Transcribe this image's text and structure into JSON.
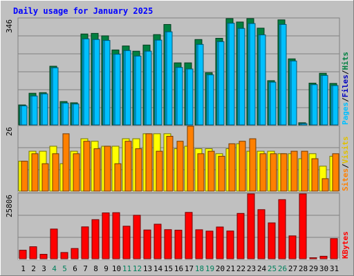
{
  "title": "Daily usage for January 2025",
  "colors": {
    "background": "#c0c0c0",
    "title": "#0000ff",
    "hits": "#008040",
    "files": "#00c0ff",
    "pages": "#00c0ff",
    "visits": "#ffff00",
    "sites": "#ff8000",
    "kbytes": "#ff0000",
    "weekend": "#00805c",
    "weekday": "#000000"
  },
  "legend": {
    "pages": "Pages",
    "files": "Files",
    "hits": "Hits",
    "sites": "Sites",
    "visits": "Visits",
    "kbytes": "KBytes",
    "sep": "/"
  },
  "chart_data": {
    "type": "bar",
    "title": "Daily usage for January 2025",
    "categories": [
      "1",
      "2",
      "3",
      "4",
      "5",
      "6",
      "7",
      "8",
      "9",
      "10",
      "11",
      "12",
      "13",
      "14",
      "15",
      "16",
      "17",
      "18",
      "19",
      "20",
      "21",
      "22",
      "23",
      "24",
      "25",
      "26",
      "27",
      "28",
      "29",
      "30",
      "31"
    ],
    "weekend_days": [
      4,
      5,
      11,
      12,
      18,
      19,
      25,
      26
    ],
    "panels": [
      {
        "name": "requests",
        "ymax": 346,
        "ymax_label": "346",
        "series": [
          {
            "name": "Hits",
            "values": [
              65,
              103,
              105,
              191,
              76,
              72,
              296,
              298,
              290,
              244,
              257,
              240,
              260,
              294,
              327,
              202,
              202,
              278,
              170,
              282,
              346,
              335,
              346,
              315,
              144,
              342,
              215,
              7,
              136,
              168,
              135
            ]
          },
          {
            "name": "Files",
            "values": [
              62,
              94,
              101,
              186,
              71,
              68,
              280,
              278,
              275,
              230,
              242,
              224,
              240,
              276,
              303,
              187,
              182,
              262,
              163,
              271,
              331,
              314,
              330,
              293,
              139,
              327,
              208,
              4,
              131,
              161,
              128
            ]
          },
          {
            "name": "Pages",
            "values": [
              62,
              94,
              101,
              186,
              71,
              68,
              280,
              278,
              275,
              230,
              242,
              224,
              240,
              276,
              303,
              187,
              182,
              262,
              163,
              271,
              331,
              314,
              330,
              293,
              139,
              327,
              208,
              4,
              131,
              161,
              128
            ]
          }
        ]
      },
      {
        "name": "visitors",
        "ymax": 26,
        "ymax_label": "26",
        "series": [
          {
            "name": "Visits",
            "values": [
              12,
              16,
              16,
              18,
              11,
              16,
              21,
              20,
              18,
              18,
              21,
              21,
              23,
              23,
              23,
              17,
              18,
              17,
              17,
              15,
              17,
              19,
              16,
              16,
              16,
              15,
              15,
              13,
              15,
              10,
              14
            ]
          },
          {
            "name": "Sites",
            "values": [
              12,
              15,
              11,
              15,
              23,
              15,
              20,
              17,
              18,
              11,
              20,
              17,
              23,
              16,
              22,
              20,
              26,
              15,
              16,
              14,
              19,
              20,
              21,
              15,
              15,
              15,
              16,
              16,
              13,
              5,
              15
            ]
          }
        ]
      },
      {
        "name": "volume",
        "ymax": 25806,
        "ymax_label": "25806",
        "series": [
          {
            "name": "KBytes",
            "values": [
              3397,
              4787,
              1776,
              11828,
              2489,
              4080,
              12690,
              15564,
              18248,
              18335,
              12954,
              17306,
              11455,
              13748,
              11583,
              11373,
              18450,
              11541,
              11002,
              12640,
              11042,
              18045,
              25806,
              19545,
              14276,
              23532,
              9107,
              25806,
              393,
              1002,
              8025
            ]
          }
        ]
      }
    ]
  }
}
